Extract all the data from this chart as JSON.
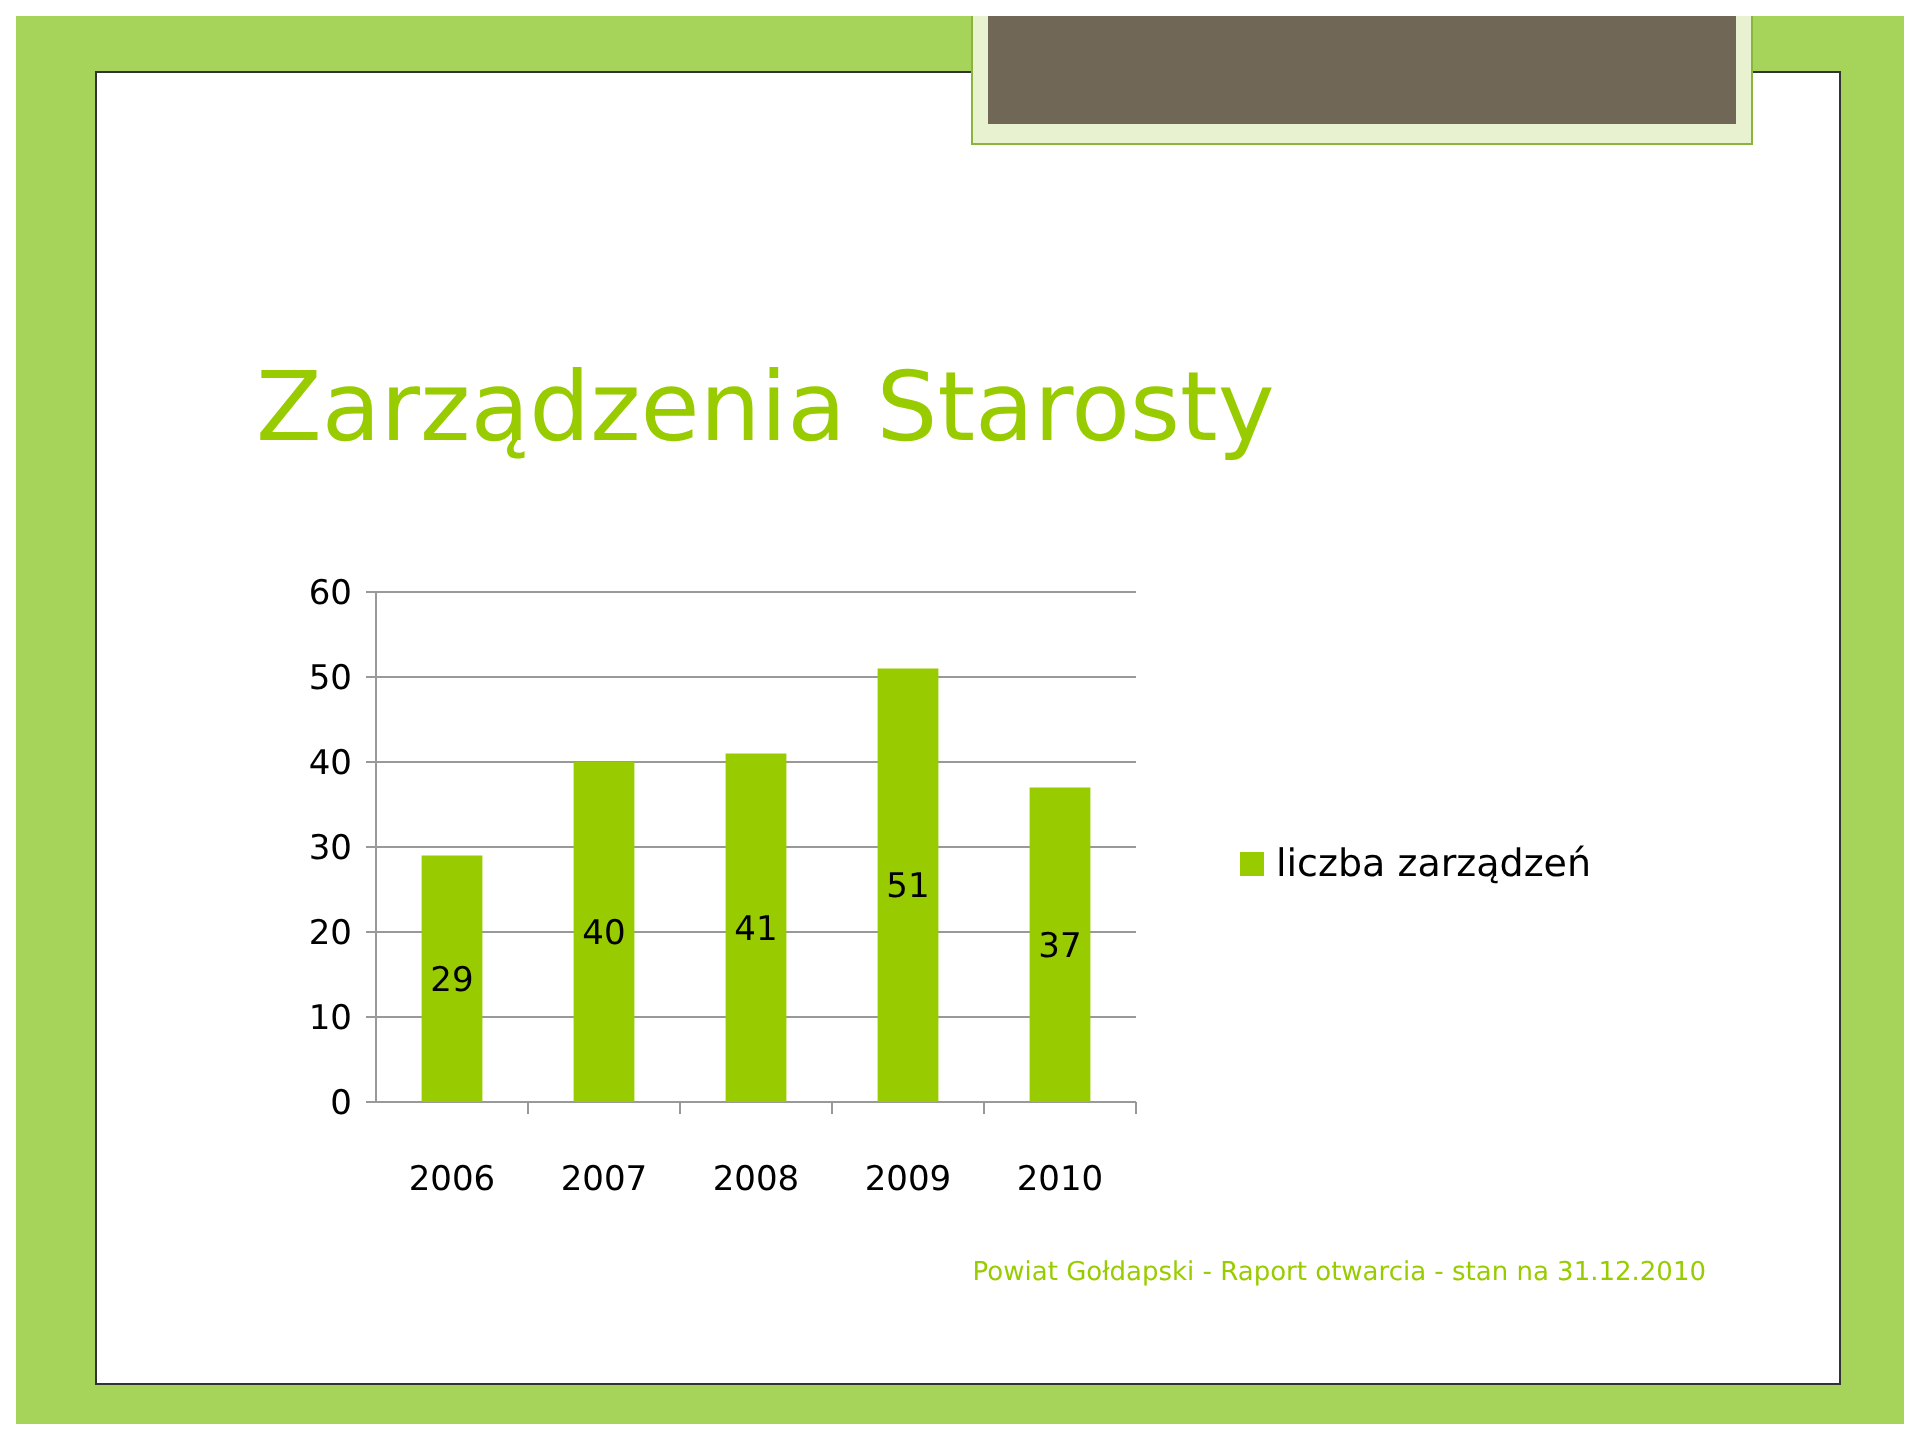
{
  "chart_data": {
    "type": "bar",
    "title": "Zarządzenia Starosty",
    "categories": [
      "2006",
      "2007",
      "2008",
      "2009",
      "2010"
    ],
    "series": [
      {
        "name": "liczba zarządzeń",
        "color": "#99cc00",
        "values": [
          29,
          40,
          41,
          51,
          37
        ]
      }
    ],
    "ylim": [
      0,
      60
    ],
    "yticks": [
      0,
      10,
      20,
      30,
      40,
      50,
      60
    ],
    "grid": "y",
    "legend": "right",
    "data_labels": true,
    "annotations": [
      "Powiat Gołdapski - Raport otwarcia - stan na 31.12.2010"
    ]
  }
}
